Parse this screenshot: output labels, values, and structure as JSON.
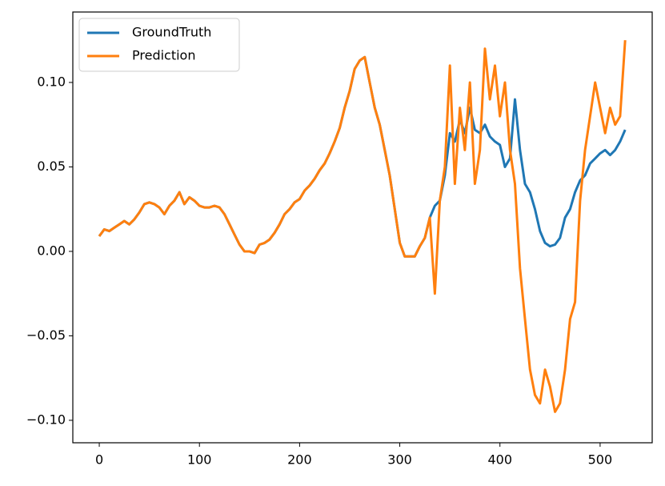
{
  "chart_data": {
    "type": "line",
    "x": [
      0,
      5,
      10,
      15,
      20,
      25,
      30,
      35,
      40,
      45,
      50,
      55,
      60,
      65,
      70,
      75,
      80,
      85,
      90,
      95,
      100,
      105,
      110,
      115,
      120,
      125,
      130,
      135,
      140,
      145,
      150,
      155,
      160,
      165,
      170,
      175,
      180,
      185,
      190,
      195,
      200,
      205,
      210,
      215,
      220,
      225,
      230,
      235,
      240,
      245,
      250,
      255,
      260,
      265,
      270,
      275,
      280,
      285,
      290,
      295,
      300,
      305,
      310,
      315,
      320,
      325,
      330,
      335,
      340,
      345,
      350,
      355,
      360,
      365,
      370,
      375,
      380,
      385,
      390,
      395,
      400,
      405,
      410,
      415,
      420,
      425,
      430,
      435,
      440,
      445,
      450,
      455,
      460,
      465,
      470,
      475,
      480,
      485,
      490,
      495,
      500,
      505,
      510,
      515,
      520,
      525
    ],
    "series": [
      {
        "name": "GroundTruth",
        "color": "#1f77b4",
        "values": [
          0.009,
          0.013,
          0.012,
          0.014,
          0.016,
          0.018,
          0.016,
          0.019,
          0.023,
          0.028,
          0.029,
          0.028,
          0.026,
          0.022,
          0.027,
          0.03,
          0.035,
          0.028,
          0.032,
          0.03,
          0.027,
          0.026,
          0.026,
          0.027,
          0.026,
          0.022,
          0.016,
          0.01,
          0.004,
          0.0,
          0.0,
          -0.001,
          0.004,
          0.005,
          0.007,
          0.011,
          0.016,
          0.022,
          0.025,
          0.029,
          0.031,
          0.036,
          0.039,
          0.043,
          0.048,
          0.052,
          0.058,
          0.065,
          0.073,
          0.085,
          0.095,
          0.108,
          0.113,
          0.115,
          0.1,
          0.085,
          0.075,
          0.06,
          0.045,
          0.025,
          0.005,
          -0.003,
          -0.003,
          -0.003,
          0.003,
          0.008,
          0.02,
          0.027,
          0.03,
          0.045,
          0.07,
          0.065,
          0.078,
          0.07,
          0.085,
          0.072,
          0.07,
          0.075,
          0.068,
          0.065,
          0.063,
          0.05,
          0.055,
          0.09,
          0.06,
          0.04,
          0.035,
          0.025,
          0.012,
          0.005,
          0.003,
          0.004,
          0.008,
          0.02,
          0.025,
          0.035,
          0.042,
          0.045,
          0.052,
          0.055,
          0.058,
          0.06,
          0.057,
          0.06,
          0.065,
          0.072
        ]
      },
      {
        "name": "Prediction",
        "color": "#ff7f0e",
        "values": [
          0.009,
          0.013,
          0.012,
          0.014,
          0.016,
          0.018,
          0.016,
          0.019,
          0.023,
          0.028,
          0.029,
          0.028,
          0.026,
          0.022,
          0.027,
          0.03,
          0.035,
          0.028,
          0.032,
          0.03,
          0.027,
          0.026,
          0.026,
          0.027,
          0.026,
          0.022,
          0.016,
          0.01,
          0.004,
          0.0,
          0.0,
          -0.001,
          0.004,
          0.005,
          0.007,
          0.011,
          0.016,
          0.022,
          0.025,
          0.029,
          0.031,
          0.036,
          0.039,
          0.043,
          0.048,
          0.052,
          0.058,
          0.065,
          0.073,
          0.085,
          0.095,
          0.108,
          0.113,
          0.115,
          0.1,
          0.085,
          0.075,
          0.06,
          0.045,
          0.025,
          0.005,
          -0.003,
          -0.003,
          -0.003,
          0.003,
          0.008,
          0.02,
          -0.025,
          0.03,
          0.05,
          0.11,
          0.04,
          0.085,
          0.06,
          0.1,
          0.04,
          0.06,
          0.12,
          0.09,
          0.11,
          0.08,
          0.1,
          0.06,
          0.04,
          -0.01,
          -0.04,
          -0.07,
          -0.085,
          -0.09,
          -0.07,
          -0.08,
          -0.095,
          -0.09,
          -0.07,
          -0.04,
          -0.03,
          0.03,
          0.06,
          0.08,
          0.1,
          0.085,
          0.07,
          0.085,
          0.075,
          0.08,
          0.125
        ]
      }
    ],
    "xlim": [
      -26.4,
      552
    ],
    "xticks": [
      0,
      100,
      200,
      300,
      400,
      500
    ],
    "ylim": [
      -0.1133,
      0.1417
    ],
    "yticks": [
      {
        "value": -0.1,
        "label": "−0.10"
      },
      {
        "value": -0.05,
        "label": "−0.05"
      },
      {
        "value": 0,
        "label": "0.00"
      },
      {
        "value": 0.05,
        "label": "0.05"
      },
      {
        "value": 0.1,
        "label": "0.10"
      }
    ],
    "legend": "upper left"
  }
}
